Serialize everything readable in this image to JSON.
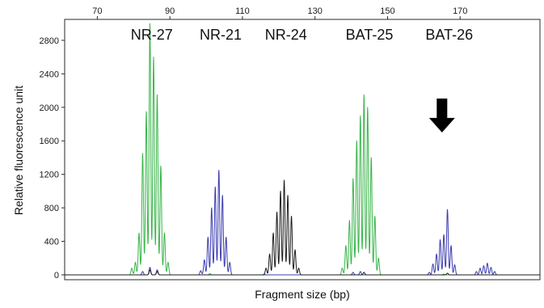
{
  "chart_data": {
    "type": "line",
    "xlabel": "Fragment size (bp)",
    "ylabel": "Relative fluorescence unit",
    "xlim": [
      61,
      192
    ],
    "ylim": [
      -30,
      3050
    ],
    "x_ticks": [
      {
        "value": 70,
        "label": "70"
      },
      {
        "value": 90,
        "label": "90"
      },
      {
        "value": 110,
        "label": "110"
      },
      {
        "value": 130,
        "label": "130"
      },
      {
        "value": 150,
        "label": "150"
      },
      {
        "value": 170,
        "label": "170"
      }
    ],
    "y_ticks": [
      {
        "value": 0,
        "label": "0"
      },
      {
        "value": 400,
        "label": "400"
      },
      {
        "value": 800,
        "label": "800"
      },
      {
        "value": 1200,
        "label": "1200"
      },
      {
        "value": 1600,
        "label": "1600"
      },
      {
        "value": 2000,
        "label": "2000"
      },
      {
        "value": 2400,
        "label": "2400"
      },
      {
        "value": 2800,
        "label": "2800"
      }
    ],
    "grid": false,
    "markers": [
      {
        "label": "NR-27",
        "x": 85
      },
      {
        "label": "NR-21",
        "x": 104
      },
      {
        "label": "NR-24",
        "x": 122
      },
      {
        "label": "BAT-25",
        "x": 145
      },
      {
        "label": "BAT-26",
        "x": 167
      }
    ],
    "annotation": {
      "type": "down-arrow",
      "x": 165,
      "y": 1700
    },
    "series": [
      {
        "color": "#39b54a",
        "peaks": [
          [
            79.5,
            80
          ],
          [
            80.5,
            150
          ],
          [
            81.5,
            500
          ],
          [
            82.5,
            1450
          ],
          [
            83.5,
            1950
          ],
          [
            84.5,
            3000
          ],
          [
            85.5,
            2600
          ],
          [
            86.5,
            2150
          ],
          [
            87.5,
            1300
          ],
          [
            88.5,
            500
          ],
          [
            89.5,
            150
          ],
          [
            101,
            15
          ],
          [
            116,
            10
          ],
          [
            137.5,
            80
          ],
          [
            138.5,
            350
          ],
          [
            139.5,
            650
          ],
          [
            140.5,
            1150
          ],
          [
            141.5,
            1600
          ],
          [
            142.5,
            1900
          ],
          [
            143.5,
            2150
          ],
          [
            144.5,
            2000
          ],
          [
            145.5,
            1400
          ],
          [
            146.5,
            700
          ],
          [
            147.5,
            200
          ],
          [
            165.5,
            10
          ]
        ]
      },
      {
        "color": "#3b3bb0",
        "peaks": [
          [
            82.5,
            40
          ],
          [
            84.5,
            90
          ],
          [
            86.5,
            60
          ],
          [
            98.5,
            50
          ],
          [
            99.5,
            180
          ],
          [
            100.5,
            450
          ],
          [
            101.5,
            800
          ],
          [
            102.5,
            1050
          ],
          [
            103.5,
            1250
          ],
          [
            104.5,
            950
          ],
          [
            105.5,
            450
          ],
          [
            106.5,
            150
          ],
          [
            140.5,
            30
          ],
          [
            142.5,
            40
          ],
          [
            161.5,
            30
          ],
          [
            162.5,
            130
          ],
          [
            163.5,
            250
          ],
          [
            164.5,
            420
          ],
          [
            165.5,
            480
          ],
          [
            166.5,
            780
          ],
          [
            167.5,
            350
          ],
          [
            168.5,
            120
          ],
          [
            174.5,
            40
          ],
          [
            175.5,
            80
          ],
          [
            176.5,
            110
          ],
          [
            177.5,
            140
          ],
          [
            178.5,
            90
          ],
          [
            179.5,
            40
          ]
        ]
      },
      {
        "color": "#1c1c1c",
        "peaks": [
          [
            84.5,
            60
          ],
          [
            86.5,
            40
          ],
          [
            116.5,
            80
          ],
          [
            117.5,
            250
          ],
          [
            118.5,
            500
          ],
          [
            119.5,
            750
          ],
          [
            120.5,
            1000
          ],
          [
            121.5,
            1130
          ],
          [
            122.5,
            950
          ],
          [
            123.5,
            700
          ],
          [
            124.5,
            300
          ],
          [
            125.5,
            80
          ],
          [
            143.5,
            30
          ],
          [
            166.5,
            20
          ]
        ]
      }
    ]
  }
}
